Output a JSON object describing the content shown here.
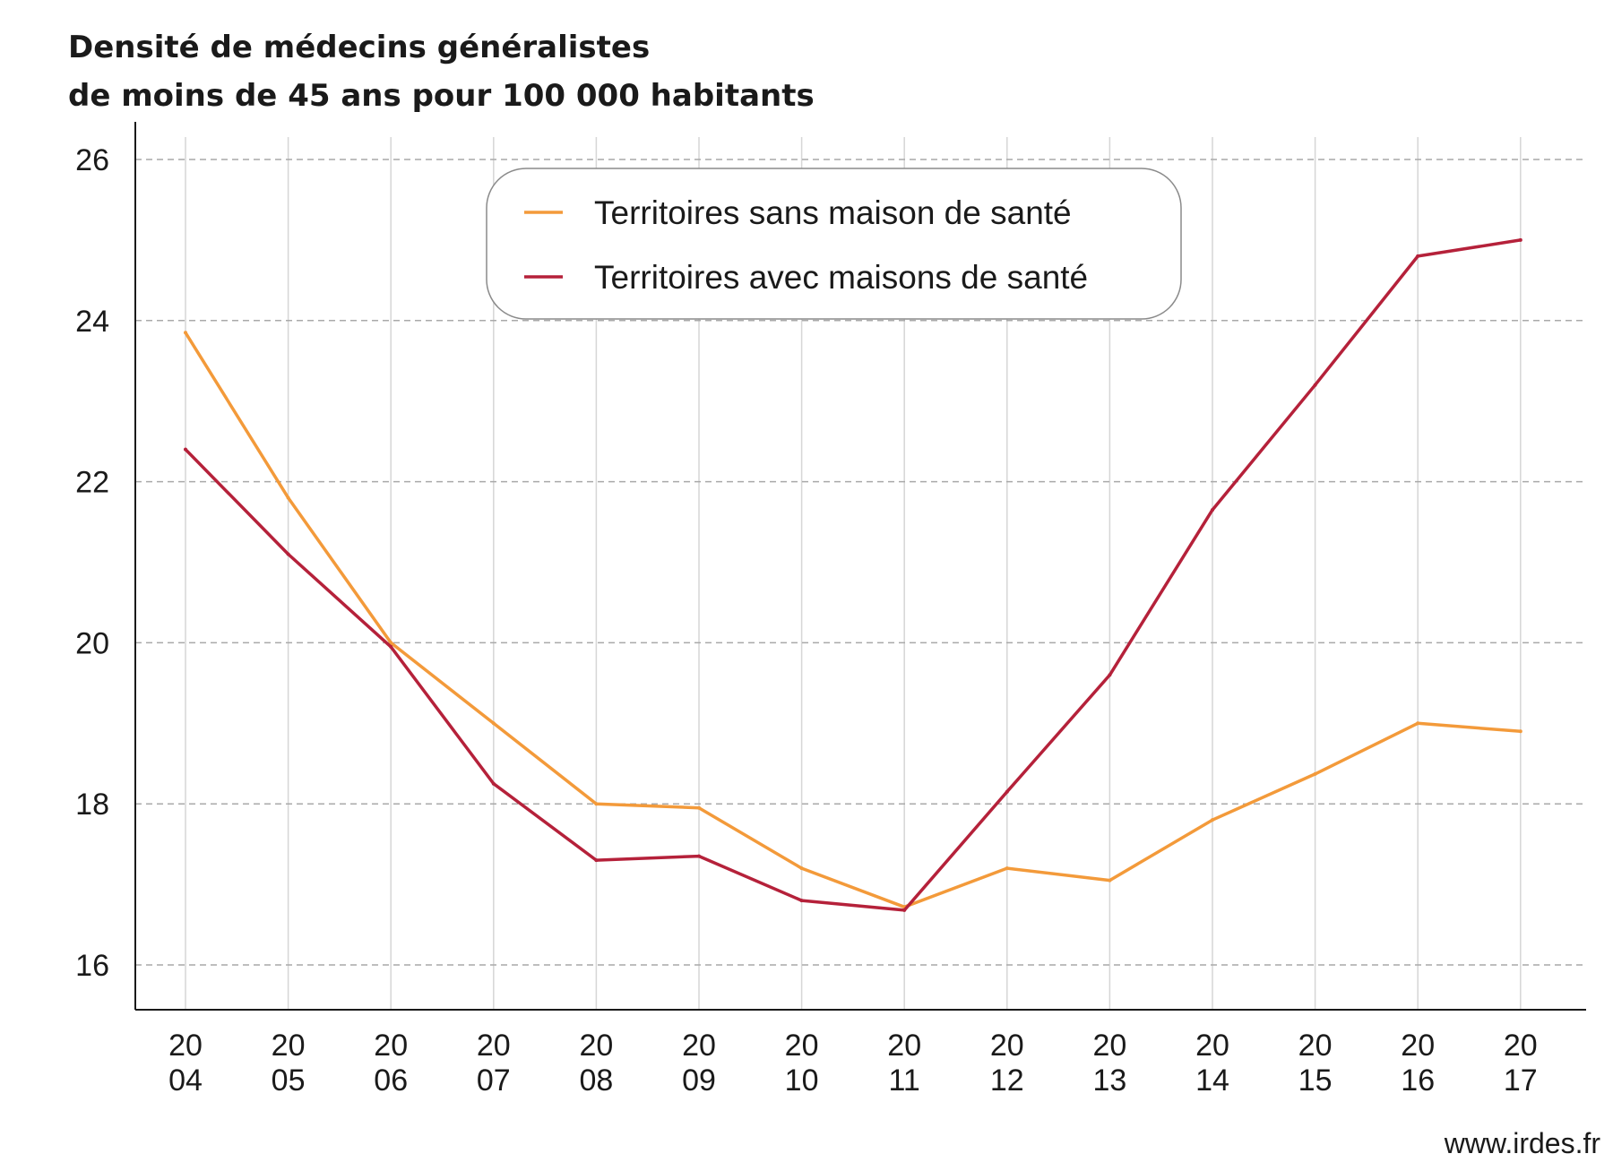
{
  "chart_data": {
    "type": "line",
    "title_lines": [
      "Densité de médecins généralistes",
      "de moins de 45 ans pour 100 000 habitants"
    ],
    "x": [
      "2004",
      "2005",
      "2006",
      "2007",
      "2008",
      "2009",
      "2010",
      "2011",
      "2012",
      "2013",
      "2014",
      "2015",
      "2016",
      "2017"
    ],
    "x_tick_labels": [
      [
        "20",
        "04"
      ],
      [
        "20",
        "05"
      ],
      [
        "20",
        "06"
      ],
      [
        "20",
        "07"
      ],
      [
        "20",
        "08"
      ],
      [
        "20",
        "09"
      ],
      [
        "20",
        "10"
      ],
      [
        "20",
        "11"
      ],
      [
        "20",
        "12"
      ],
      [
        "20",
        "13"
      ],
      [
        "20",
        "14"
      ],
      [
        "20",
        "15"
      ],
      [
        "20",
        "16"
      ],
      [
        "20",
        "17"
      ]
    ],
    "y_ticks": [
      "16",
      "18",
      "20",
      "22",
      "24",
      "26"
    ],
    "ylim": [
      15.4,
      26.5
    ],
    "grid": "horizontal dashed, vertical solid light gray",
    "legend_position": "top-center",
    "series": [
      {
        "name": "Territoires sans maison de santé",
        "color": "#f39a3a",
        "values": [
          23.85,
          21.8,
          20.0,
          19.0,
          18.0,
          17.95,
          17.2,
          16.72,
          17.2,
          17.05,
          17.8,
          18.37,
          19.0,
          18.9
        ]
      },
      {
        "name": "Territoires avec maisons de santé",
        "color": "#b5213a",
        "values": [
          22.4,
          21.1,
          19.95,
          18.25,
          17.3,
          17.35,
          16.8,
          16.68,
          18.15,
          19.6,
          21.65,
          23.2,
          24.8,
          25.0
        ]
      }
    ]
  },
  "source": "www.irdes.fr"
}
